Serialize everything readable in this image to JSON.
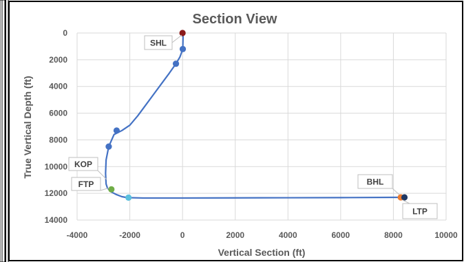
{
  "chart_data": {
    "type": "line",
    "title": "Section View",
    "xlabel": "Vertical Section (ft)",
    "ylabel": "True Vertical Depth (ft)",
    "xlim": [
      -4000,
      10000
    ],
    "ylim": [
      14000,
      0
    ],
    "y_inverted": true,
    "x_ticks": [
      -4000,
      -2000,
      0,
      2000,
      4000,
      6000,
      8000,
      10000
    ],
    "y_ticks": [
      0,
      2000,
      4000,
      6000,
      8000,
      10000,
      12000,
      14000
    ],
    "grid": "horizontal",
    "series": [
      {
        "color": "#4472c4",
        "x": [
          0,
          20,
          10,
          -100,
          -250,
          -500,
          -800,
          -1100,
          -1400,
          -1700,
          -2000,
          -2300,
          -2600,
          -2800,
          -2900,
          -2920,
          -2900,
          -2850,
          -2700,
          -2500,
          -2300,
          -2100,
          -1500,
          0,
          2000,
          4000,
          6000,
          8000,
          8300,
          8400
        ],
        "y": [
          0,
          300,
          1200,
          1800,
          2300,
          3000,
          3800,
          4600,
          5400,
          6200,
          6900,
          7300,
          7600,
          8500,
          9500,
          10500,
          11300,
          11600,
          11900,
          12100,
          12250,
          12320,
          12350,
          12350,
          12340,
          12330,
          12320,
          12300,
          12300,
          12300
        ]
      }
    ],
    "markers": [
      {
        "x": 0,
        "y": 0,
        "color": "#8b1a1a"
      },
      {
        "x": 10,
        "y": 1200,
        "color": "#4472c4"
      },
      {
        "x": -250,
        "y": 2300,
        "color": "#4472c4"
      },
      {
        "x": -2500,
        "y": 7300,
        "color": "#4472c4"
      },
      {
        "x": -2800,
        "y": 8500,
        "color": "#4472c4"
      },
      {
        "x": -2700,
        "y": 11700,
        "color": "#70ad47"
      },
      {
        "x": -2050,
        "y": 12320,
        "color": "#5bc0de"
      },
      {
        "x": 8280,
        "y": 12300,
        "color": "#ed7d31"
      },
      {
        "x": 8420,
        "y": 12300,
        "color": "#1f3864"
      }
    ],
    "annotations": [
      {
        "label": "SHL",
        "x": 0,
        "y": 0
      },
      {
        "label": "KOP",
        "x": -2900,
        "y": 11000
      },
      {
        "label": "FTP",
        "x": -2700,
        "y": 11700
      },
      {
        "label": "BHL",
        "x": 8280,
        "y": 12300
      },
      {
        "label": "LTP",
        "x": 8420,
        "y": 12300
      }
    ]
  }
}
